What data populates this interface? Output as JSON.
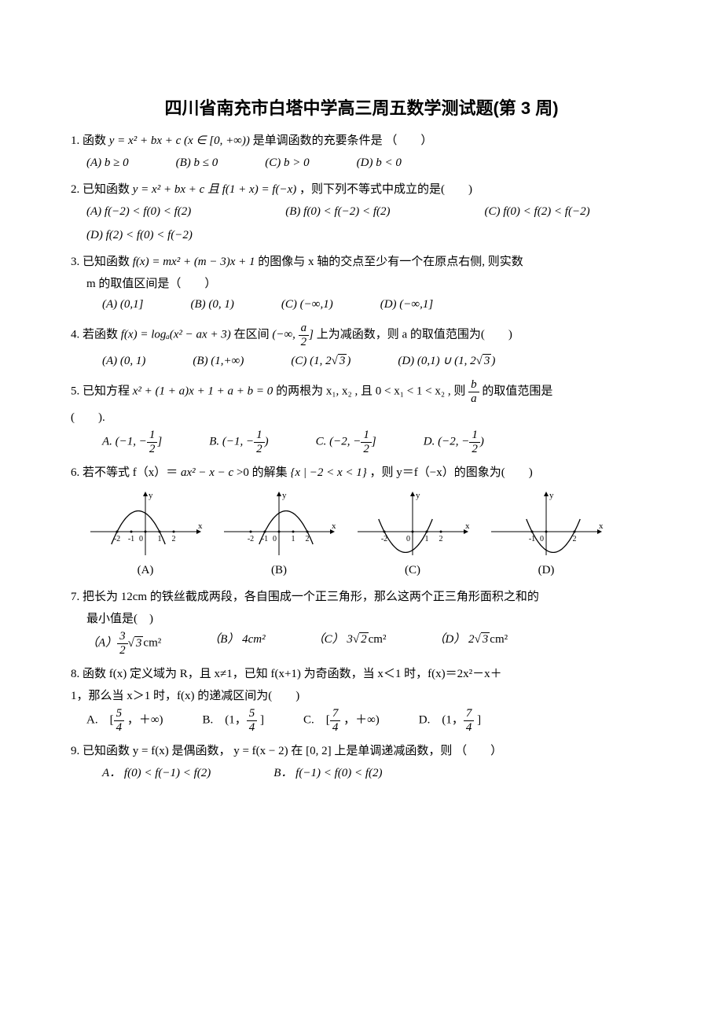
{
  "title": "四川省南充市白塔中学高三周五数学测试题(第 3 周)",
  "q1": {
    "stem_pre": "1. 函数 ",
    "stem_math": "y = x² + bx + c  (x ∈ [0, +∞))",
    "stem_post": " 是单调函数的充要条件是  （　　）",
    "A": "(A) b ≥ 0",
    "B": "(B) b ≤ 0",
    "C": "(C) b > 0",
    "D": "(D) b < 0"
  },
  "q2": {
    "stem_pre": "2. 已知函数 ",
    "stem_math": "y = x² + bx + c 且 f(1 + x) = f(−x)",
    "stem_post": " ，则下列不等式中成立的是(　　)",
    "A": "(A) f(−2) < f(0) < f(2)",
    "B": "(B)  f(0) < f(−2) < f(2)",
    "C": "(C) f(0) < f(2) < f(−2)",
    "D": "(D)  f(2) < f(0) < f(−2)"
  },
  "q3": {
    "line1_pre": "3. 已知函数 ",
    "line1_math": "f(x) = mx² + (m − 3)x + 1",
    "line1_post": " 的图像与 x 轴的交点至少有一个在原点右侧, 则实数",
    "line2": "m 的取值区间是（　　）",
    "A": "(A) (0,1]",
    "B": "(B) (0, 1)",
    "C": "(C) (−∞,1)",
    "D": "(D) (−∞,1]"
  },
  "q4": {
    "stem_pre": "4. 若函数 ",
    "stem_math_l": "f(x) = logₐ(x² − ax + 3)",
    "stem_mid": " 在区间 ",
    "interval_pre": "(−∞, ",
    "frac_n": "a",
    "frac_d": "2",
    "interval_post": "]",
    "stem_post": " 上为减函数，则 a 的取值范围为(　　)",
    "A": "(A)  (0, 1)",
    "B_pre": "(B) (1,+∞)",
    "C_pre": "(C) (1, 2",
    "C_rad": "3",
    "C_post": ")",
    "D_pre": "(D) (0,1) ∪ (1, 2",
    "D_rad": "3",
    "D_post": ")"
  },
  "q5": {
    "line1_pre": "5. 已知方程 ",
    "line1_math": "x² + (1 + a)x + 1 + a + b = 0",
    "line1_mid": " 的两根为 x₁, x₂ , 且 0 < x₁ < 1 < x₂ , 则 ",
    "frac_n": "b",
    "frac_d": "a",
    "line1_post": " 的取值范围是",
    "blank": "(　　).",
    "A_pre": "A. (−1, −",
    "A_n": "1",
    "A_d": "2",
    "A_post": "]",
    "B_pre": "B. (−1, −",
    "B_n": "1",
    "B_d": "2",
    "B_post": ")",
    "C_pre": "C. (−2, −",
    "C_n": "1",
    "C_d": "2",
    "C_post": "]",
    "D_pre": "D. (−2, −",
    "D_n": "1",
    "D_d": "2",
    "D_post": ")"
  },
  "q6": {
    "stem_pre": "6. 若不等式 f（x）＝ ",
    "stem_math": "ax² − x − c",
    "stem_mid": " >0 的解集 ",
    "set": "{x | −2 < x < 1}",
    "stem_post": " ，则 y＝f（−x）的图象为(　　)",
    "labels": {
      "A": "(A)",
      "B": "(B)",
      "C": "(C)",
      "D": "(D)"
    },
    "graphs": {
      "A": {
        "xticks": [
          -2,
          -1,
          0,
          1,
          2
        ],
        "parabola": {
          "vertex_x": -0.5,
          "vertex_y": 1.2,
          "roots": [
            -2,
            1
          ],
          "open": "down"
        }
      },
      "B": {
        "xticks": [
          -2,
          -1,
          0,
          1,
          2
        ],
        "parabola": {
          "vertex_x": 0.5,
          "vertex_y": 1.2,
          "roots": [
            -1,
            2
          ],
          "open": "down"
        }
      },
      "C": {
        "xticks": [
          -2,
          0,
          1,
          2
        ],
        "parabola": {
          "vertex_x": -0.5,
          "vertex_y": -1.2,
          "roots": [
            -2,
            1
          ],
          "open": "up"
        }
      },
      "D": {
        "xticks": [
          -1,
          0,
          2
        ],
        "parabola": {
          "vertex_x": 0.5,
          "vertex_y": -1.2,
          "roots": [
            -1,
            2
          ],
          "open": "up"
        }
      }
    }
  },
  "q7": {
    "line1": "7. 把长为 12cm 的铁丝截成两段，各自围成一个正三角形，那么这两个正三角形面积之和的",
    "line2": "最小值是(　)",
    "A_pre": "（A）",
    "A_n": "3",
    "A_d": "2",
    "A_rad": "3",
    "A_post": "cm²",
    "B": "（B） 4cm²",
    "C_pre": "（C） 3",
    "C_rad": "2",
    "C_post": "cm²",
    "D_pre": " （D） 2",
    "D_rad": "3",
    "D_post": "cm²"
  },
  "q8": {
    "line1": "8.  函数 f(x) 定义域为 R，且 x≠1，已知 f(x+1) 为奇函数，当 x＜1 时，f(x)＝2x²－x＋",
    "line2": "1，那么当 x＞1 时，f(x) 的递减区间为(　　)",
    "A_pre": "A.　[",
    "A_n": "5",
    "A_d": "4",
    "A_post": " ，＋∞)",
    "B_pre": "B.　(1，",
    "B_n": "5",
    "B_d": "4",
    "B_post": " ]",
    "C_pre": "C.　[",
    "C_n": "7",
    "C_d": "4",
    "C_post": " ，＋∞)",
    "D_pre": "D.　(1，",
    "D_n": "7",
    "D_d": "4",
    "D_post": " ]"
  },
  "q9": {
    "stem": "9.  已知函数 y = f(x) 是偶函数， y = f(x − 2) 在 [0, 2] 上是单调递减函数，则 （　　）",
    "A": "A． f(0) < f(−1) < f(2)",
    "B": "B． f(−1) < f(0) < f(2)"
  },
  "colors": {
    "text": "#000000",
    "bg": "#ffffff"
  }
}
